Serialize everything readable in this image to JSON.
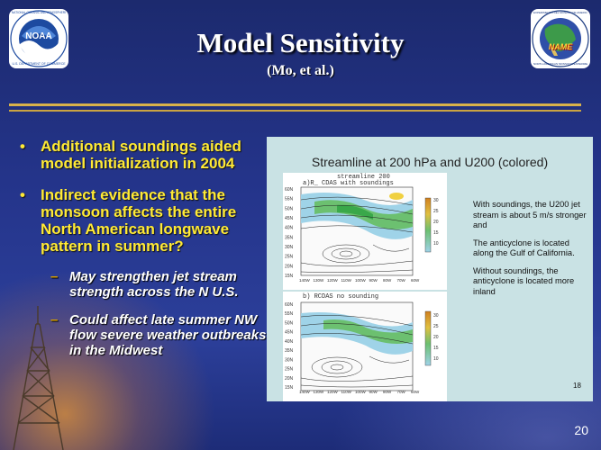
{
  "slide": {
    "title": "Model Sensitivity",
    "subtitle": "(Mo, et al.)",
    "number": "20"
  },
  "logos": {
    "left": {
      "icon": "noaa-logo",
      "ring_top": "NATIONAL OCEANIC AND ATMOSPHERIC ADMINISTRATION",
      "ring_bottom": "U.S. DEPARTMENT OF COMMERCE",
      "center": "NOAA"
    },
    "right": {
      "icon": "name-logo",
      "ring_top": "EXPERIMENTO DEL MONZON DE AMERICA DEL NORTE",
      "ring_bottom": "NORTH AMERICAN MONSOON EXPERIMENT",
      "center": "NAME"
    }
  },
  "bullets": [
    {
      "text": "Additional soundings aided model initialization in 2004",
      "level": 1
    },
    {
      "text": "Indirect evidence that the monsoon affects the entire North American longwave pattern in summer?",
      "level": 1
    },
    {
      "text": "May strengthen jet stream strength across the N U.S.",
      "level": 2
    },
    {
      "text": "Could affect late summer NW flow severe weather outbreaks in the Midwest",
      "level": 2
    }
  ],
  "figure": {
    "title": "Streamline at 200 hPa and U200 (colored)",
    "top_plot": {
      "header": "streamline 200",
      "label": "a)R_ CDAS with soundings"
    },
    "bottom_plot": {
      "label": "b) RCDAS no sounding"
    },
    "lat_ticks": [
      "60N",
      "55N",
      "50N",
      "45N",
      "40N",
      "35N",
      "30N",
      "25N",
      "20N",
      "15N"
    ],
    "lon_ticks": [
      "140W",
      "130W",
      "120W",
      "110W",
      "100W",
      "90W",
      "80W",
      "70W",
      "60W"
    ],
    "colorbar_ticks": [
      "30",
      "25",
      "20",
      "15",
      "10"
    ],
    "colors": {
      "jet_core": "#3aa84a",
      "jet_edge": "#9fd3e8",
      "jet_mid": "#6cc070",
      "highlight": "#f0d040"
    },
    "notes": [
      "With soundings, the U200 jet stream is about 5 m/s stronger and",
      "The anticyclone is located along the Gulf of California.",
      "Without soundings, the anticyclone is located more inland"
    ],
    "page_number": "18"
  }
}
